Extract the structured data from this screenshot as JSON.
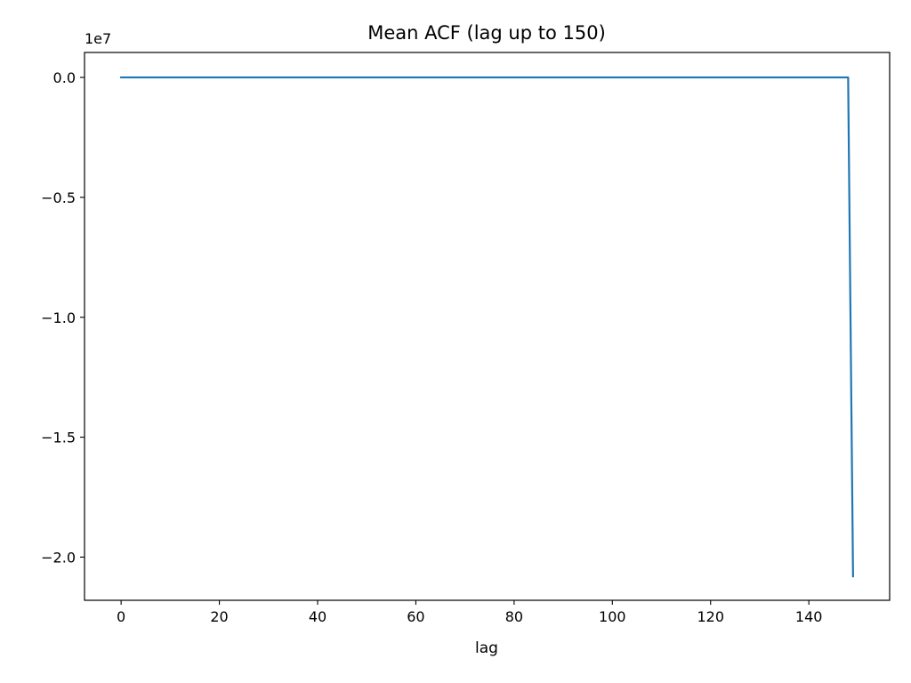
{
  "chart_data": {
    "type": "line",
    "title": "Mean ACF (lag up to 150)",
    "xlabel": "lag",
    "ylabel": "",
    "y_offset_label": "1e7",
    "y_scale": 10000000,
    "xlim": [
      -7.45,
      156.45
    ],
    "ylim": [
      -21800000,
      1040000
    ],
    "x_ticks": [
      0,
      20,
      40,
      60,
      80,
      100,
      120,
      140
    ],
    "x_tick_labels": [
      "0",
      "20",
      "40",
      "60",
      "80",
      "100",
      "120",
      "140"
    ],
    "y_ticks": [
      0,
      -5000000,
      -10000000,
      -15000000,
      -20000000
    ],
    "y_tick_labels": [
      "0.0",
      "−0.5",
      "−1.0",
      "−1.5",
      "−2.0"
    ],
    "grid": false,
    "legend": "none",
    "series": [
      {
        "color": "#1f77b4",
        "x": [
          0,
          10,
          20,
          30,
          40,
          50,
          60,
          70,
          80,
          90,
          100,
          110,
          120,
          130,
          140,
          148,
          149
        ],
        "y": [
          1,
          0,
          0,
          0,
          0,
          0,
          0,
          0,
          0,
          0,
          0,
          0,
          0,
          0,
          0,
          0,
          -20800000
        ]
      }
    ]
  }
}
